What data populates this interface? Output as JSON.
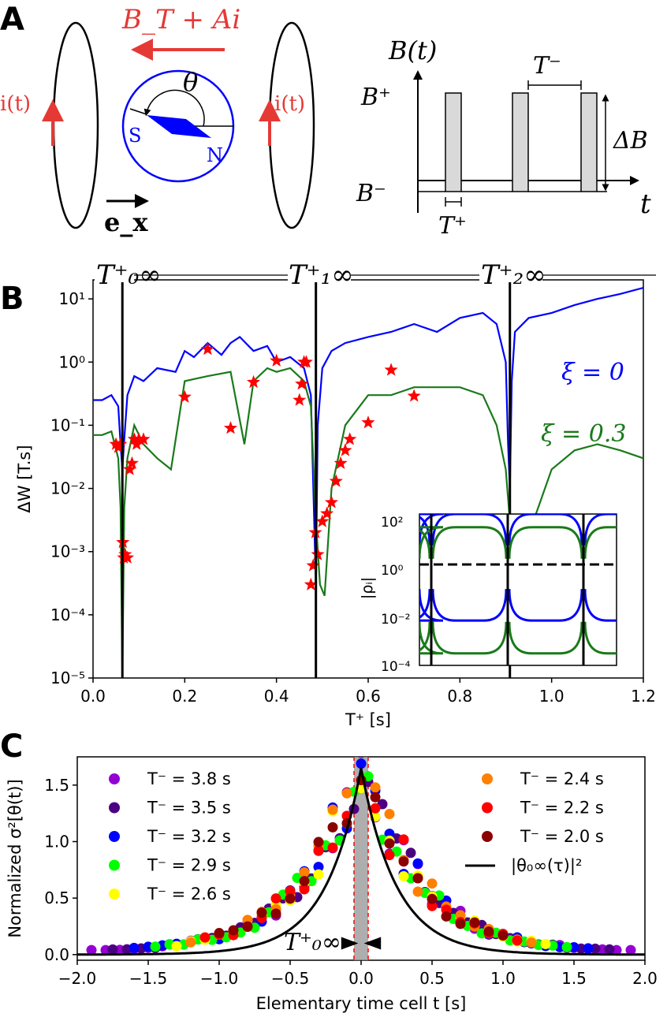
{
  "panel_a": {
    "label": "A",
    "field_label": "B_T + Ai",
    "current_left": "i(t)",
    "current_right": "i(t)",
    "angle": "θ",
    "pole_s": "S",
    "pole_n": "N",
    "unit_vector": "e_x",
    "schematic": {
      "y_label": "B(t)",
      "b_plus": "B⁺",
      "b_minus": "B⁻",
      "t_minus": "T⁻",
      "t_plus": "T⁺",
      "delta_b": "ΔB",
      "t_axis": "t"
    }
  },
  "panel_b": {
    "label": "B",
    "markers": [
      "T⁺₀∞",
      "T⁺₁∞",
      "T⁺₂∞"
    ],
    "series_labels": [
      "ξ = 0",
      "ξ = 0.3"
    ],
    "inset": {
      "ylabel": "|ρᵢ|",
      "yticks": [
        "10²",
        "10⁰",
        "10⁻²",
        "10⁻⁴"
      ]
    }
  },
  "panel_c": {
    "label": "C",
    "marker_label": "T⁺₀∞"
  },
  "chart_data": [
    {
      "type": "line",
      "xlabel": "T⁺ [s]",
      "ylabel": "ΔW [T.s]",
      "xlim": [
        0.0,
        1.2
      ],
      "ylim": [
        1e-05,
        20
      ],
      "yscale": "log",
      "xticks": [
        "0.0",
        "0.2",
        "0.4",
        "0.6",
        "0.8",
        "1.0",
        "1.2"
      ],
      "yticks": [
        "10¹",
        "10⁰",
        "10⁻¹",
        "10⁻²",
        "10⁻³",
        "10⁻⁴",
        "10⁻⁵"
      ],
      "vlines": [
        0.064,
        0.486,
        0.909
      ],
      "series": [
        {
          "name": "ξ = 0",
          "color": "#0000ff",
          "x": [
            0.0,
            0.02,
            0.04,
            0.055,
            0.06,
            0.064,
            0.068,
            0.075,
            0.09,
            0.11,
            0.14,
            0.18,
            0.2,
            0.22,
            0.25,
            0.28,
            0.3,
            0.32,
            0.35,
            0.38,
            0.4,
            0.43,
            0.46,
            0.475,
            0.483,
            0.486,
            0.49,
            0.5,
            0.52,
            0.55,
            0.6,
            0.65,
            0.7,
            0.75,
            0.8,
            0.85,
            0.88,
            0.9,
            0.905,
            0.909,
            0.913,
            0.92,
            0.95,
            1.0,
            1.05,
            1.1,
            1.15,
            1.2
          ],
          "y": [
            0.25,
            0.25,
            0.3,
            0.2,
            0.05,
            0.02,
            0.06,
            0.3,
            0.6,
            0.5,
            0.8,
            0.7,
            1.5,
            1.2,
            2.0,
            1.3,
            2.0,
            2.5,
            1.5,
            1.8,
            1.0,
            1.2,
            0.8,
            0.3,
            0.002,
            0.0003,
            0.1,
            0.8,
            1.5,
            2.0,
            2.5,
            3.0,
            4.0,
            3.0,
            5.0,
            6.0,
            4.0,
            1.0,
            0.05,
            0.01,
            0.5,
            3.0,
            5.0,
            6.0,
            8.0,
            10.0,
            12.0,
            15.0
          ]
        },
        {
          "name": "ξ = 0.3",
          "color": "#1a7a1a",
          "x": [
            0.0,
            0.02,
            0.04,
            0.055,
            0.06,
            0.064,
            0.068,
            0.075,
            0.09,
            0.11,
            0.14,
            0.17,
            0.2,
            0.25,
            0.3,
            0.33,
            0.35,
            0.38,
            0.4,
            0.43,
            0.46,
            0.475,
            0.486,
            0.495,
            0.505,
            0.52,
            0.55,
            0.6,
            0.65,
            0.7,
            0.75,
            0.8,
            0.85,
            0.88,
            0.9,
            0.909,
            0.93,
            0.96,
            1.0,
            1.05,
            1.1,
            1.15,
            1.2
          ],
          "y": [
            0.07,
            0.07,
            0.08,
            0.03,
            0.005,
            1e-05,
            0.005,
            0.03,
            0.1,
            0.05,
            0.03,
            0.02,
            0.5,
            0.6,
            0.7,
            0.05,
            0.5,
            0.8,
            0.7,
            0.8,
            0.5,
            0.2,
            0.003,
            0.0003,
            0.0002,
            0.01,
            0.1,
            0.3,
            0.3,
            0.4,
            0.4,
            0.4,
            0.3,
            0.1,
            0.02,
            0.003,
            0.0001,
            0.003,
            0.02,
            0.04,
            0.05,
            0.04,
            0.03
          ]
        },
        {
          "name": "",
          "color": "#ff0000",
          "marker": "star",
          "x": [
            0.05,
            0.055,
            0.06,
            0.065,
            0.067,
            0.07,
            0.075,
            0.08,
            0.085,
            0.09,
            0.095,
            0.1,
            0.11,
            0.2,
            0.25,
            0.3,
            0.35,
            0.4,
            0.45,
            0.455,
            0.46,
            0.465,
            0.475,
            0.48,
            0.485,
            0.49,
            0.5,
            0.51,
            0.52,
            0.53,
            0.54,
            0.55,
            0.56,
            0.6,
            0.65,
            0.7
          ],
          "y": [
            0.05,
            0.045,
            0.05,
            0.0014,
            0.0008,
            0.0009,
            0.0008,
            0.02,
            0.025,
            0.06,
            0.05,
            0.06,
            0.06,
            0.28,
            1.6,
            0.09,
            0.48,
            1.05,
            0.25,
            0.45,
            1.0,
            1.0,
            0.0003,
            0.0006,
            0.002,
            0.0009,
            0.003,
            0.004,
            0.006,
            0.013,
            0.025,
            0.04,
            0.06,
            0.11,
            0.75,
            0.29
          ]
        }
      ]
    },
    {
      "type": "line",
      "xlabel": "",
      "ylabel": "|ρᵢ|",
      "ylim": [
        0.0001,
        100
      ],
      "yscale": "log",
      "series": [
        {
          "name": "",
          "color": "#0000ff",
          "upper": 100,
          "lower": 0.006
        },
        {
          "name": "",
          "color": "#1a7a1a",
          "upper": 30,
          "lower": 0.0003
        }
      ]
    },
    {
      "type": "scatter",
      "xlabel": "Elementary time cell t [s]",
      "ylabel": "Normalized σ²[θ(t)]",
      "xlim": [
        -2.0,
        2.0
      ],
      "ylim": [
        -0.05,
        1.75
      ],
      "xticks": [
        "−2.0",
        "−1.5",
        "−1.0",
        "−0.5",
        "0.0",
        "0.5",
        "1.0",
        "1.5",
        "2.0"
      ],
      "yticks": [
        "0.0",
        "0.5",
        "1.0",
        "1.5"
      ],
      "series": [
        {
          "name": "T⁻ = 3.8 s",
          "color": "#9400d3"
        },
        {
          "name": "T⁻ = 3.5 s",
          "color": "#4b0082"
        },
        {
          "name": "T⁻ = 3.2 s",
          "color": "#0000ff"
        },
        {
          "name": "T⁻ = 2.9 s",
          "color": "#00ff00"
        },
        {
          "name": "T⁻ = 2.6 s",
          "color": "#ffff00"
        },
        {
          "name": "T⁻ = 2.4 s",
          "color": "#ff7f00"
        },
        {
          "name": "T⁻ = 2.2 s",
          "color": "#ff0000"
        },
        {
          "name": "T⁻ = 2.0 s",
          "color": "#8b0000"
        },
        {
          "name": "|θ₀∞(τ)|²",
          "color": "#000000",
          "peak": 1.65,
          "decay": 0.25
        }
      ]
    }
  ]
}
